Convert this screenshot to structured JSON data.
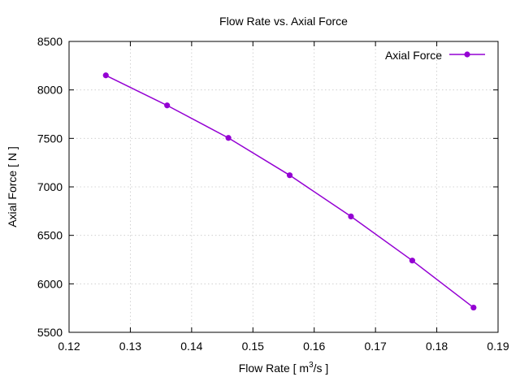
{
  "chart_data": {
    "type": "line",
    "title": "Flow Rate vs. Axial Force",
    "xlabel_main": "Flow Rate [ m",
    "xlabel_sup": "3",
    "xlabel_tail": "/s ]",
    "ylabel": "Axial Force [ N ]",
    "xlim": [
      0.12,
      0.19
    ],
    "ylim": [
      5500,
      8500
    ],
    "xticks": [
      "0.12",
      "0.13",
      "0.14",
      "0.15",
      "0.16",
      "0.17",
      "0.18",
      "0.19"
    ],
    "yticks": [
      "5500",
      "6000",
      "6500",
      "7000",
      "7500",
      "8000",
      "8500"
    ],
    "grid": true,
    "legend_position": "top-right",
    "series": [
      {
        "name": "Axial Force",
        "color": "#9400d3",
        "x": [
          0.126,
          0.136,
          0.146,
          0.156,
          0.166,
          0.176,
          0.186
        ],
        "y": [
          8150,
          7840,
          7505,
          7120,
          6695,
          6240,
          5755
        ]
      }
    ]
  }
}
